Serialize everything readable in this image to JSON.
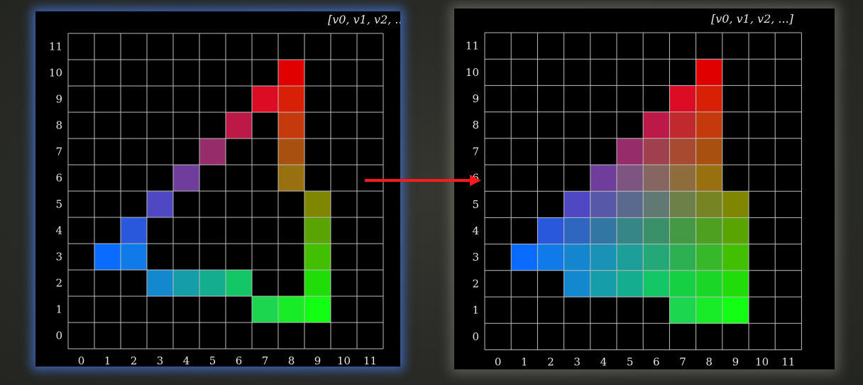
{
  "header_label": "[v0, v1, v2, ...]",
  "grid": {
    "size": 12,
    "x_ticks": [
      "0",
      "1",
      "2",
      "3",
      "4",
      "5",
      "6",
      "7",
      "8",
      "9",
      "10",
      "11"
    ],
    "y_ticks": [
      "0",
      "1",
      "2",
      "3",
      "4",
      "5",
      "6",
      "7",
      "8",
      "9",
      "10",
      "11"
    ]
  },
  "arrow_color": "#ff1a1a",
  "left_cells": [
    [
      8,
      10,
      "#e00000"
    ],
    [
      7,
      9,
      "#dc0c25"
    ],
    [
      8,
      9,
      "#d82006"
    ],
    [
      6,
      8,
      "#bd1948"
    ],
    [
      8,
      8,
      "#c43a0c"
    ],
    [
      5,
      7,
      "#962c6a"
    ],
    [
      8,
      7,
      "#a85010"
    ],
    [
      4,
      6,
      "#6f3d9c"
    ],
    [
      8,
      6,
      "#987010"
    ],
    [
      3,
      5,
      "#5048c2"
    ],
    [
      9,
      5,
      "#7f8600"
    ],
    [
      2,
      4,
      "#2a58dc"
    ],
    [
      9,
      4,
      "#5aa400"
    ],
    [
      1,
      3,
      "#0a6cff"
    ],
    [
      2,
      3,
      "#0f7ae8"
    ],
    [
      9,
      3,
      "#42c000"
    ],
    [
      3,
      2,
      "#1488cf"
    ],
    [
      4,
      2,
      "#159ea9"
    ],
    [
      5,
      2,
      "#15ad8f"
    ],
    [
      6,
      2,
      "#14c766"
    ],
    [
      9,
      2,
      "#20dc08"
    ],
    [
      7,
      1,
      "#1bd64e"
    ],
    [
      8,
      1,
      "#18ec28"
    ],
    [
      9,
      1,
      "#12ff14"
    ]
  ],
  "right_cells": [
    [
      8,
      10,
      "#e00000"
    ],
    [
      7,
      9,
      "#dc0c25"
    ],
    [
      8,
      9,
      "#d82006"
    ],
    [
      6,
      8,
      "#bd1948"
    ],
    [
      7,
      8,
      "#c02a2e"
    ],
    [
      8,
      8,
      "#c43a0c"
    ],
    [
      5,
      7,
      "#962c6a"
    ],
    [
      6,
      7,
      "#a0404c"
    ],
    [
      7,
      7,
      "#a84a30"
    ],
    [
      8,
      7,
      "#a85010"
    ],
    [
      4,
      6,
      "#6f3d9c"
    ],
    [
      5,
      6,
      "#7e5480"
    ],
    [
      6,
      6,
      "#866660"
    ],
    [
      7,
      6,
      "#8e6c3c"
    ],
    [
      8,
      6,
      "#987010"
    ],
    [
      3,
      5,
      "#5048c2"
    ],
    [
      4,
      5,
      "#5858a8"
    ],
    [
      5,
      5,
      "#5a6a8e"
    ],
    [
      6,
      5,
      "#627872"
    ],
    [
      7,
      5,
      "#6c8048"
    ],
    [
      8,
      5,
      "#768424"
    ],
    [
      9,
      5,
      "#7f8600"
    ],
    [
      2,
      4,
      "#2a58dc"
    ],
    [
      3,
      4,
      "#2e66c0"
    ],
    [
      4,
      4,
      "#3276a4"
    ],
    [
      5,
      4,
      "#368688"
    ],
    [
      6,
      4,
      "#3a9068"
    ],
    [
      7,
      4,
      "#449a44"
    ],
    [
      8,
      4,
      "#4ea020"
    ],
    [
      9,
      4,
      "#5aa400"
    ],
    [
      1,
      3,
      "#0a6cff"
    ],
    [
      2,
      3,
      "#0f7ae8"
    ],
    [
      3,
      3,
      "#1486d0"
    ],
    [
      4,
      3,
      "#1a92b6"
    ],
    [
      5,
      3,
      "#1e9e98"
    ],
    [
      6,
      3,
      "#24a878"
    ],
    [
      7,
      3,
      "#2cb052"
    ],
    [
      8,
      3,
      "#36b82a"
    ],
    [
      9,
      3,
      "#42c000"
    ],
    [
      3,
      2,
      "#1488cf"
    ],
    [
      4,
      2,
      "#159ea9"
    ],
    [
      5,
      2,
      "#15ad8f"
    ],
    [
      6,
      2,
      "#14c766"
    ],
    [
      7,
      2,
      "#16d044"
    ],
    [
      8,
      2,
      "#1ad626"
    ],
    [
      9,
      2,
      "#20dc08"
    ],
    [
      7,
      1,
      "#1bd64e"
    ],
    [
      8,
      1,
      "#18ec28"
    ],
    [
      9,
      1,
      "#12ff14"
    ]
  ]
}
